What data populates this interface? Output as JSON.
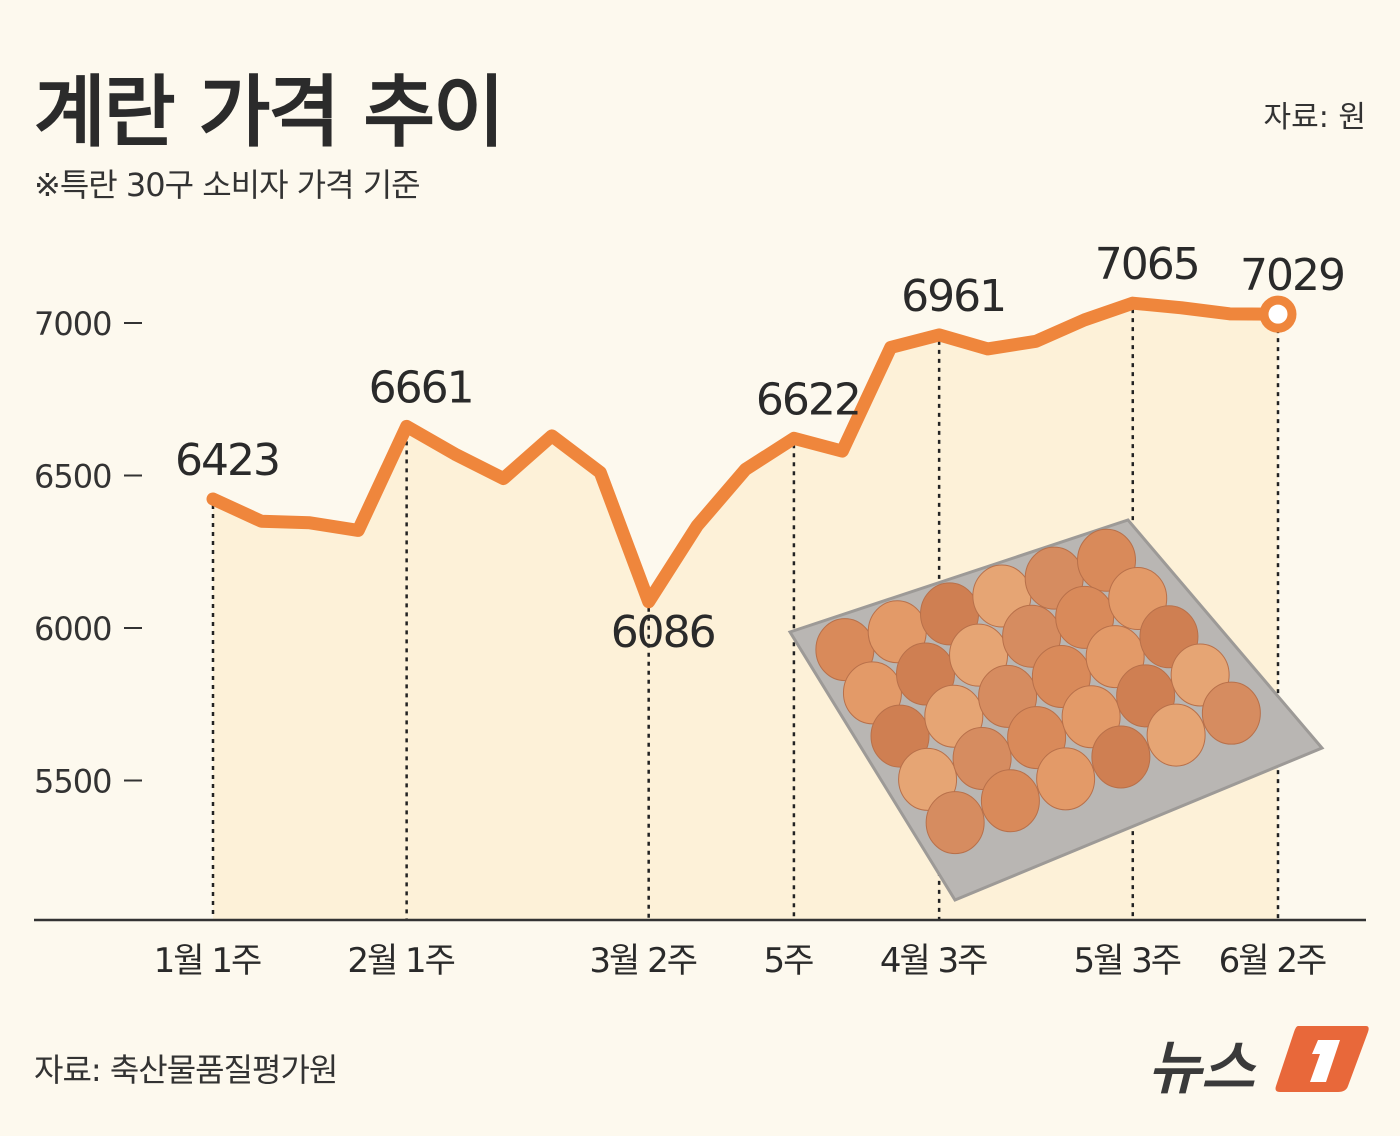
{
  "header": {
    "title": "계란 가격 추이",
    "subtitle": "※특란 30구 소비자 가격 기준",
    "unit": "자료: 원"
  },
  "footer": {
    "source": "자료: 축산물품질평가원",
    "logo_text": "뉴스1"
  },
  "colors": {
    "line": "#ef863c",
    "fill": "#fdf1d8",
    "background": "#fdf9ee",
    "text": "#2a2a2a",
    "logo_accent": "#e8683a"
  },
  "chart_data": {
    "type": "line",
    "title": "계란 가격 추이",
    "ylabel": "원",
    "y_ticks": [
      7000,
      6500,
      6000,
      5500
    ],
    "ylim": [
      5000,
      7200
    ],
    "grid": false,
    "values": [
      6423,
      6350,
      6345,
      6320,
      6661,
      6570,
      6490,
      6630,
      6510,
      6086,
      6335,
      6520,
      6622,
      6580,
      6920,
      6961,
      6915,
      6940,
      7010,
      7065,
      7050,
      7030,
      7029
    ],
    "labeled_points": [
      {
        "index": 0,
        "x_label": "1월 1주",
        "value_label": "6423"
      },
      {
        "index": 4,
        "x_label": "2월 1주",
        "value_label": "6661"
      },
      {
        "index": 9,
        "x_label": "3월 2주",
        "value_label": "6086"
      },
      {
        "index": 12,
        "x_label": "5주",
        "value_label": "6622"
      },
      {
        "index": 15,
        "x_label": "4월 3주",
        "value_label": "6961"
      },
      {
        "index": 19,
        "x_label": "5월 3주",
        "value_label": "7065"
      },
      {
        "index": 22,
        "x_label": "6월 2주",
        "value_label": "7029"
      }
    ],
    "image": "egg-tray-photo"
  }
}
